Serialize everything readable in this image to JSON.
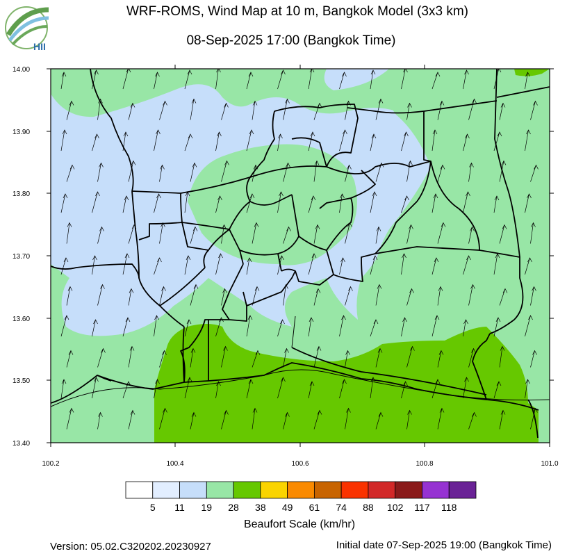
{
  "header": {
    "title": "WRF-ROMS, Wind Map at 10 m, Bangkok Model (3x3 km)",
    "subtitle": "08-Sep-2025 17:00 (Bangkok Time)",
    "logo_text": "HII"
  },
  "map": {
    "lat_ticks": [
      "14.00",
      "13.90",
      "13.80",
      "13.70",
      "13.60",
      "13.50",
      "13.40"
    ],
    "lon_ticks": [
      "100.2",
      "100.4",
      "100.6",
      "100.8",
      "101.0"
    ],
    "lon_range": [
      100.2,
      101.0
    ],
    "lat_range": [
      13.4,
      14.0
    ],
    "wind_direction": "from south (arrows pointing north)"
  },
  "legend": {
    "title": "Beaufort Scale (km/hr)",
    "labels": [
      "5",
      "11",
      "19",
      "28",
      "38",
      "49",
      "61",
      "74",
      "88",
      "102",
      "117",
      "118"
    ],
    "colors": [
      "#ffffff",
      "#e2eeff",
      "#c6defa",
      "#98e6a6",
      "#66c800",
      "#fad400",
      "#fa8a00",
      "#c86400",
      "#fa3200",
      "#d22828",
      "#8a1a1a",
      "#9632d2",
      "#6a2296"
    ]
  },
  "footer": {
    "version": "Version: 05.02.C320202.20230927",
    "initial_date": "Initial date 07-Sep-2025 19:00 (Bangkok Time)"
  }
}
